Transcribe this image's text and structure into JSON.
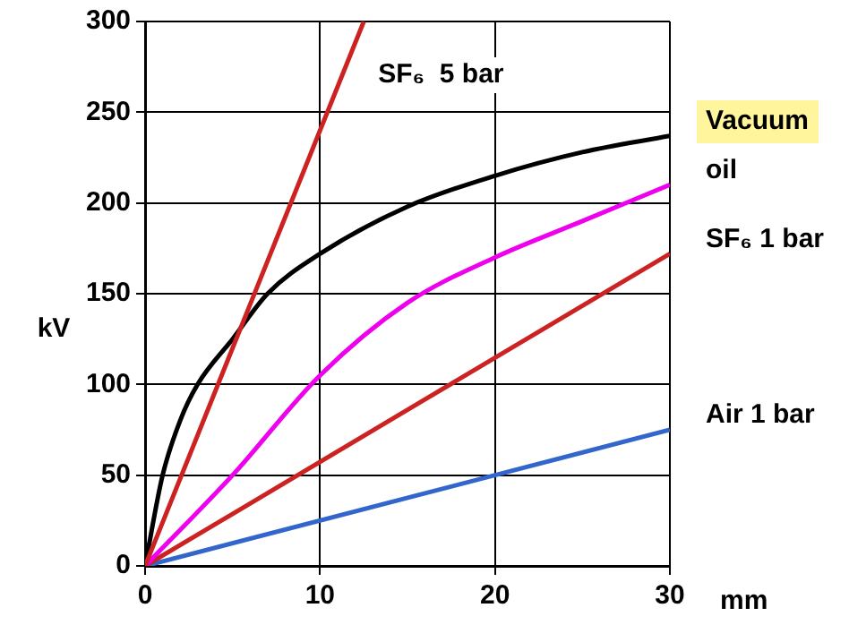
{
  "chart_data": {
    "type": "line",
    "xlabel": "mm",
    "ylabel": "kV",
    "xlim": [
      0,
      30
    ],
    "ylim": [
      0,
      300
    ],
    "xticks": [
      0,
      10,
      20,
      30
    ],
    "yticks": [
      0,
      50,
      100,
      150,
      200,
      250,
      300
    ],
    "grid": true,
    "legend": false,
    "marker": "none",
    "line_style": "solid",
    "series": [
      {
        "name": "SF₆  5 bar",
        "color": "#cc2222",
        "x": [
          0,
          12.5
        ],
        "values": [
          0,
          300
        ]
      },
      {
        "name": "Vacuum",
        "color": "#000000",
        "x": [
          0,
          1,
          2,
          3,
          5,
          7,
          10,
          15,
          20,
          25,
          30
        ],
        "values": [
          0,
          50,
          80,
          100,
          125,
          150,
          172,
          198,
          215,
          228,
          237
        ]
      },
      {
        "name": "oil",
        "color": "#ee00ee",
        "x": [
          0,
          5,
          10,
          15,
          20,
          25,
          30
        ],
        "values": [
          0,
          50,
          105,
          145,
          170,
          190,
          210
        ]
      },
      {
        "name": "SF₆ 1 bar",
        "color": "#cc2222",
        "x": [
          0,
          30
        ],
        "values": [
          0,
          172
        ]
      },
      {
        "name": "Air 1 bar",
        "color": "#3366cc",
        "x": [
          0,
          30
        ],
        "values": [
          0,
          75
        ]
      }
    ]
  }
}
